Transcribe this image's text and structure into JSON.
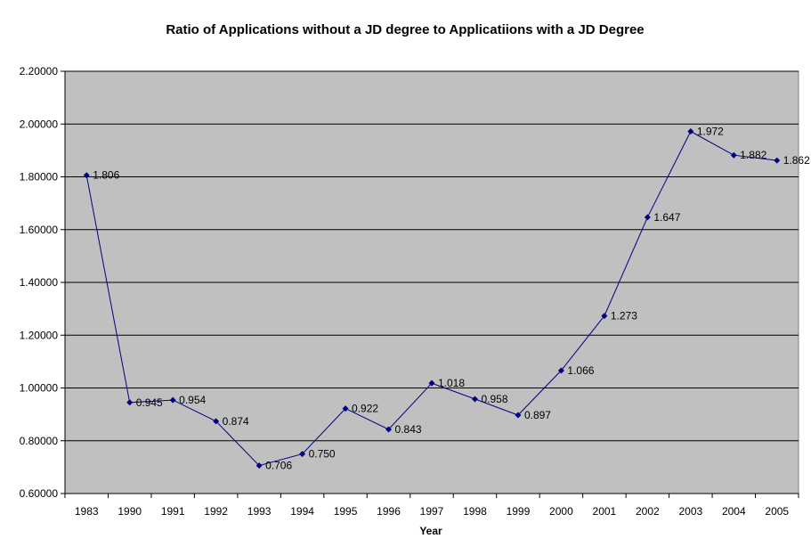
{
  "chart_data": {
    "type": "line",
    "title": "Ratio of Applications without a JD degree to Applicatiions with a JD Degree",
    "xlabel": "Year",
    "ylabel": "",
    "ylim": [
      0.6,
      2.2
    ],
    "yticks": [
      "0.60000",
      "0.80000",
      "1.00000",
      "1.20000",
      "1.40000",
      "1.60000",
      "1.80000",
      "2.00000",
      "2.20000"
    ],
    "categories": [
      "1983",
      "1990",
      "1991",
      "1992",
      "1993",
      "1994",
      "1995",
      "1996",
      "1997",
      "1998",
      "1999",
      "2000",
      "2001",
      "2002",
      "2003",
      "2004",
      "2005"
    ],
    "series": [
      {
        "values": [
          1.806,
          0.945,
          0.954,
          0.874,
          0.706,
          0.75,
          0.922,
          0.843,
          1.018,
          0.958,
          0.897,
          1.066,
          1.273,
          1.647,
          1.972,
          1.882,
          1.862
        ],
        "labels": [
          "1.806",
          "0.945",
          "0.954",
          "0.874",
          "0.706",
          "0.750",
          "0.922",
          "0.843",
          "1.018",
          "0.958",
          "0.897",
          "1.066",
          "1.273",
          "1.647",
          "1.972",
          "1.882",
          "1.862"
        ],
        "color": "#000080"
      }
    ],
    "grid": true,
    "legend": "none",
    "plot_background": "#c0c0c0",
    "gridline_color": "#000000"
  }
}
